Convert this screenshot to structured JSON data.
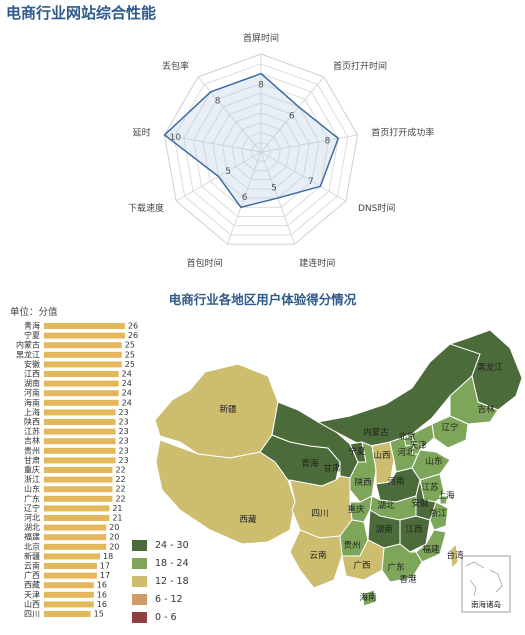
{
  "title": "电商行业网站综合性能",
  "chart_data": [
    {
      "type": "radar",
      "axes": [
        "首屏时间",
        "首页打开时间",
        "首页打开成功率",
        "DNS时间",
        "建连时间",
        "首包时间",
        "下载速度",
        "延时",
        "丢包率"
      ],
      "values": [
        8,
        6,
        8,
        7,
        5,
        6,
        5,
        10,
        8
      ],
      "rmax": 10
    },
    {
      "type": "bar",
      "title": "电商行业各地区用户体验得分情况",
      "ylabel": "单位：分值",
      "categories": [
        "青海",
        "宁夏",
        "内蒙古",
        "黑龙江",
        "安徽",
        "江西",
        "湖南",
        "河南",
        "海南",
        "上海",
        "陕西",
        "江苏",
        "吉林",
        "贵州",
        "甘肃",
        "重庆",
        "浙江",
        "山东",
        "广东",
        "辽宁",
        "河北",
        "湖北",
        "福建",
        "北京",
        "新疆",
        "云南",
        "广西",
        "西藏",
        "天津",
        "山西",
        "四川"
      ],
      "values": [
        26,
        26,
        25,
        25,
        25,
        24,
        24,
        24,
        24,
        23,
        23,
        23,
        23,
        23,
        23,
        22,
        22,
        22,
        22,
        21,
        21,
        20,
        20,
        20,
        18,
        17,
        17,
        16,
        16,
        16,
        15
      ],
      "xlim": [
        0,
        27
      ]
    }
  ],
  "map": {
    "legend": [
      {
        "label": "24 - 30",
        "color": "#4c6b3a"
      },
      {
        "label": "18 - 24",
        "color": "#7ea65a"
      },
      {
        "label": "12 - 18",
        "color": "#cdbd6f"
      },
      {
        "label": "6 - 12",
        "color": "#d19a6b"
      },
      {
        "label": "0 - 6",
        "color": "#8c4040"
      }
    ],
    "labels": [
      "黑龙江",
      "吉林",
      "辽宁",
      "内蒙古",
      "新疆",
      "青海",
      "甘肃",
      "宁夏",
      "陕西",
      "山西",
      "北京",
      "天津",
      "河北",
      "山东",
      "河南",
      "江苏",
      "安徽",
      "上海",
      "浙江",
      "湖北",
      "湖南",
      "江西",
      "福建",
      "台湾",
      "四川",
      "重庆",
      "贵州",
      "云南",
      "广西",
      "广东",
      "香港",
      "海南",
      "西藏"
    ],
    "inset_label": "南海诸岛"
  }
}
